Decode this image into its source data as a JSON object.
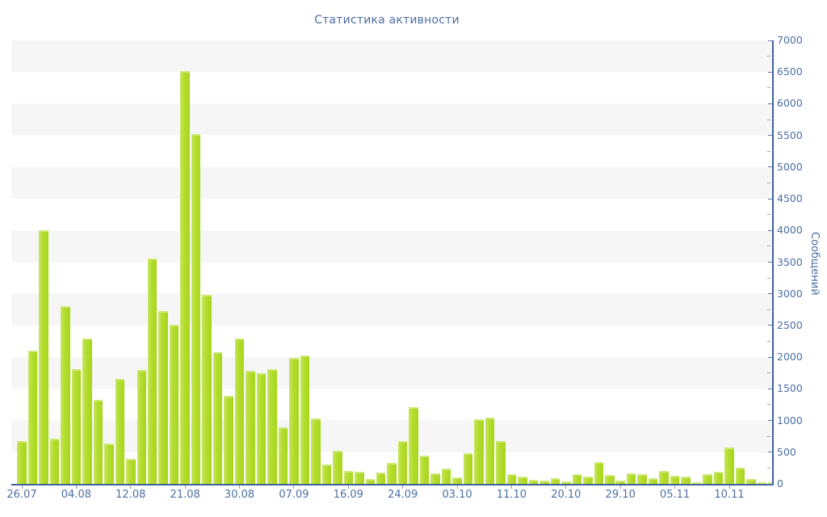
{
  "title": "Статистика активности",
  "chart_data": {
    "type": "bar",
    "title": "Статистика активности",
    "xlabel": "",
    "ylabel": "Сообщений",
    "ylim": [
      0,
      7000
    ],
    "y_major_step": 500,
    "y_minor_step": 250,
    "legend": "none",
    "grid": "alternating horizontal gray/white bands every 500 units, gray band at 6500-7000 down to gray band at 500-1000",
    "x_tick_labels": [
      "26.07",
      "04.08",
      "12.08",
      "21.08",
      "30.08",
      "07.09",
      "16.09",
      "24.09",
      "03.10",
      "11.10",
      "20.10",
      "29.10",
      "05.11",
      "10.11"
    ],
    "x_label_interval": 5,
    "values": [
      680,
      2100,
      4000,
      720,
      2810,
      1815,
      2290,
      1330,
      640,
      1655,
      390,
      1800,
      3555,
      2730,
      2510,
      6520,
      5525,
      2980,
      2080,
      1390,
      2300,
      1780,
      1745,
      1810,
      890,
      1985,
      2030,
      1030,
      300,
      520,
      210,
      195,
      72,
      175,
      335,
      670,
      1215,
      450,
      165,
      240,
      100,
      480,
      1015,
      1045,
      670,
      155,
      120,
      70,
      50,
      85,
      35,
      150,
      115,
      350,
      135,
      50,
      165,
      150,
      95,
      210,
      125,
      110,
      30,
      150,
      195,
      575,
      255,
      80,
      25,
      18
    ]
  },
  "colors": {
    "bar": "#aed926",
    "bar_highlight": "#c9e663",
    "axis_line": "#41619b",
    "tick_label": "#4c6fa4",
    "title": "#4d6da5",
    "band_gray": "#f6f6f6",
    "background": "#ffffff"
  }
}
